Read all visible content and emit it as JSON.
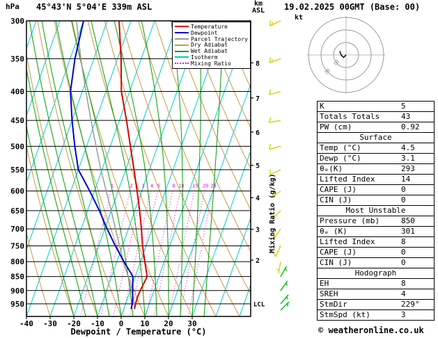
{
  "header": {
    "pressure_unit_label": "hPa",
    "station_title": "45°43'N 5°04'E 339m ASL",
    "altitude_unit_line1": "km",
    "altitude_unit_line2": "ASL",
    "datetime_label": "19.02.2025 00GMT (Base: 00)"
  },
  "axes": {
    "pressure_ticks_hpa": [
      300,
      350,
      400,
      450,
      500,
      550,
      600,
      650,
      700,
      750,
      800,
      850,
      900,
      950
    ],
    "temperature_ticks_c": [
      -40,
      -30,
      -20,
      -10,
      0,
      10,
      20,
      30
    ],
    "x_axis_label": "Dewpoint / Temperature (°C)",
    "right_axis_label": "Mixing Ratio (g/kg)",
    "km_ticks": [
      2,
      3,
      4,
      5,
      6,
      7,
      8
    ],
    "lcl_label": "LCL"
  },
  "legend": {
    "items": [
      {
        "label": "Temperature",
        "color": "#dd0000",
        "dashed": false
      },
      {
        "label": "Dewpoint",
        "color": "#0000cc",
        "dashed": false
      },
      {
        "label": "Parcel Trajectory",
        "color": "#999999",
        "dashed": false
      },
      {
        "label": "Dry Adiabat",
        "color": "#cc9944",
        "dashed": false
      },
      {
        "label": "Wet Adiabat",
        "color": "#00a000",
        "dashed": false
      },
      {
        "label": "Isotherm",
        "color": "#00cccc",
        "dashed": false
      },
      {
        "label": "Mixing Ratio",
        "color": "#e800e8",
        "dashed": true
      }
    ]
  },
  "chart_data": {
    "type": "skewt_log_p_sounding",
    "pressure_axis_range_hpa": [
      300,
      1000
    ],
    "temperature_axis_labels_c": [
      -40,
      30
    ],
    "mixing_ratio_lines_g_kg": [
      1,
      2,
      3,
      4,
      5,
      8,
      10,
      15,
      20,
      25
    ],
    "colors": {
      "temperature": "#dd0000",
      "dewpoint": "#0000cc",
      "parcel": "#999999",
      "dry_adiabat": "#cc9944",
      "wet_adiabat": "#00a000",
      "isotherm": "#00cccc",
      "mixing_ratio": "#e800e8",
      "isobar": "#000000"
    },
    "sounding": {
      "pressure_hpa": [
        970,
        950,
        925,
        900,
        875,
        850,
        800,
        750,
        700,
        650,
        600,
        550,
        500,
        450,
        400,
        350,
        300
      ],
      "temperature_c": [
        4.5,
        4.2,
        4.0,
        4.2,
        4.6,
        5.0,
        1.8,
        -1.5,
        -4.5,
        -8.0,
        -12.0,
        -16.5,
        -21.5,
        -27.0,
        -33.5,
        -38.5,
        -45.0
      ],
      "dewpoint_c": [
        3.1,
        2.8,
        2.0,
        1.0,
        0.0,
        -1.0,
        -7.0,
        -13.0,
        -19.0,
        -25.0,
        -32.0,
        -40.0,
        -45.0,
        -50.0,
        -55.0,
        -58.0,
        -60.0
      ],
      "parcel_c": [
        4.5,
        3.8,
        2.2,
        0.5,
        -1.2,
        -3.0,
        -7.2,
        -11.2,
        -15.5,
        -20.0,
        -25.0,
        -30.5,
        -36.0,
        -42.0,
        -48.5,
        -55.5,
        -63.0
      ]
    },
    "wind_barbs": [
      {
        "p": 300,
        "dir_deg": 245,
        "speed_kt": 15,
        "color": "#d4d400"
      },
      {
        "p": 350,
        "dir_deg": 250,
        "speed_kt": 15,
        "color": "#d4d400"
      },
      {
        "p": 400,
        "dir_deg": 255,
        "speed_kt": 10,
        "color": "#d4d400"
      },
      {
        "p": 450,
        "dir_deg": 260,
        "speed_kt": 10,
        "color": "#d4d400"
      },
      {
        "p": 500,
        "dir_deg": 255,
        "speed_kt": 10,
        "color": "#d4d400"
      },
      {
        "p": 550,
        "dir_deg": 245,
        "speed_kt": 10,
        "color": "#d4d400"
      },
      {
        "p": 600,
        "dir_deg": 235,
        "speed_kt": 5,
        "color": "#d4d400"
      },
      {
        "p": 650,
        "dir_deg": 225,
        "speed_kt": 5,
        "color": "#d4d400"
      },
      {
        "p": 700,
        "dir_deg": 215,
        "speed_kt": 5,
        "color": "#d4d400"
      },
      {
        "p": 750,
        "dir_deg": 205,
        "speed_kt": 10,
        "color": "#d4d400"
      },
      {
        "p": 800,
        "dir_deg": 190,
        "speed_kt": 5,
        "color": "#d4d400"
      },
      {
        "p": 850,
        "dir_deg": 30,
        "speed_kt": 5,
        "color": "#00c000"
      },
      {
        "p": 900,
        "dir_deg": 35,
        "speed_kt": 5,
        "color": "#00c000"
      },
      {
        "p": 950,
        "dir_deg": 40,
        "speed_kt": 5,
        "color": "#00c000"
      },
      {
        "p": 975,
        "dir_deg": 45,
        "speed_kt": 5,
        "color": "#00c000"
      }
    ]
  },
  "hodograph": {
    "unit_label": "kt",
    "rings_kt": [
      10,
      20,
      30
    ],
    "ring_labels": [
      "10",
      "20"
    ],
    "trace_kt": [
      [
        0,
        0
      ],
      [
        -2,
        -2
      ],
      [
        -4,
        0
      ],
      [
        -5,
        3
      ]
    ],
    "storm_dir_deg": 229,
    "storm_speed_kt": 3
  },
  "stats_table": {
    "rows": [
      {
        "type": "data",
        "label": "K",
        "value": "5"
      },
      {
        "type": "data",
        "label": "Totals Totals",
        "value": "43"
      },
      {
        "type": "data",
        "label": "PW (cm)",
        "value": "0.92"
      },
      {
        "type": "header",
        "label": "Surface"
      },
      {
        "type": "data",
        "label": "Temp (°C)",
        "value": "4.5"
      },
      {
        "type": "data",
        "label": "Dewp (°C)",
        "value": "3.1"
      },
      {
        "type": "data",
        "label": "θₑ(K)",
        "value": "293"
      },
      {
        "type": "data",
        "label": "Lifted Index",
        "value": "14"
      },
      {
        "type": "data",
        "label": "CAPE (J)",
        "value": "0"
      },
      {
        "type": "data",
        "label": "CIN (J)",
        "value": "0"
      },
      {
        "type": "header",
        "label": "Most Unstable"
      },
      {
        "type": "data",
        "label": "Pressure (mb)",
        "value": "850"
      },
      {
        "type": "data",
        "label": "θₑ (K)",
        "value": "301"
      },
      {
        "type": "data",
        "label": "Lifted Index",
        "value": "8"
      },
      {
        "type": "data",
        "label": "CAPE (J)",
        "value": "0"
      },
      {
        "type": "data",
        "label": "CIN (J)",
        "value": "0"
      },
      {
        "type": "header",
        "label": "Hodograph"
      },
      {
        "type": "data",
        "label": "EH",
        "value": "8"
      },
      {
        "type": "data",
        "label": "SREH",
        "value": "4"
      },
      {
        "type": "data",
        "label": "StmDir",
        "value": "229°"
      },
      {
        "type": "data",
        "label": "StmSpd (kt)",
        "value": "3"
      }
    ]
  },
  "footer": {
    "credit": "© weatheronline.co.uk"
  }
}
